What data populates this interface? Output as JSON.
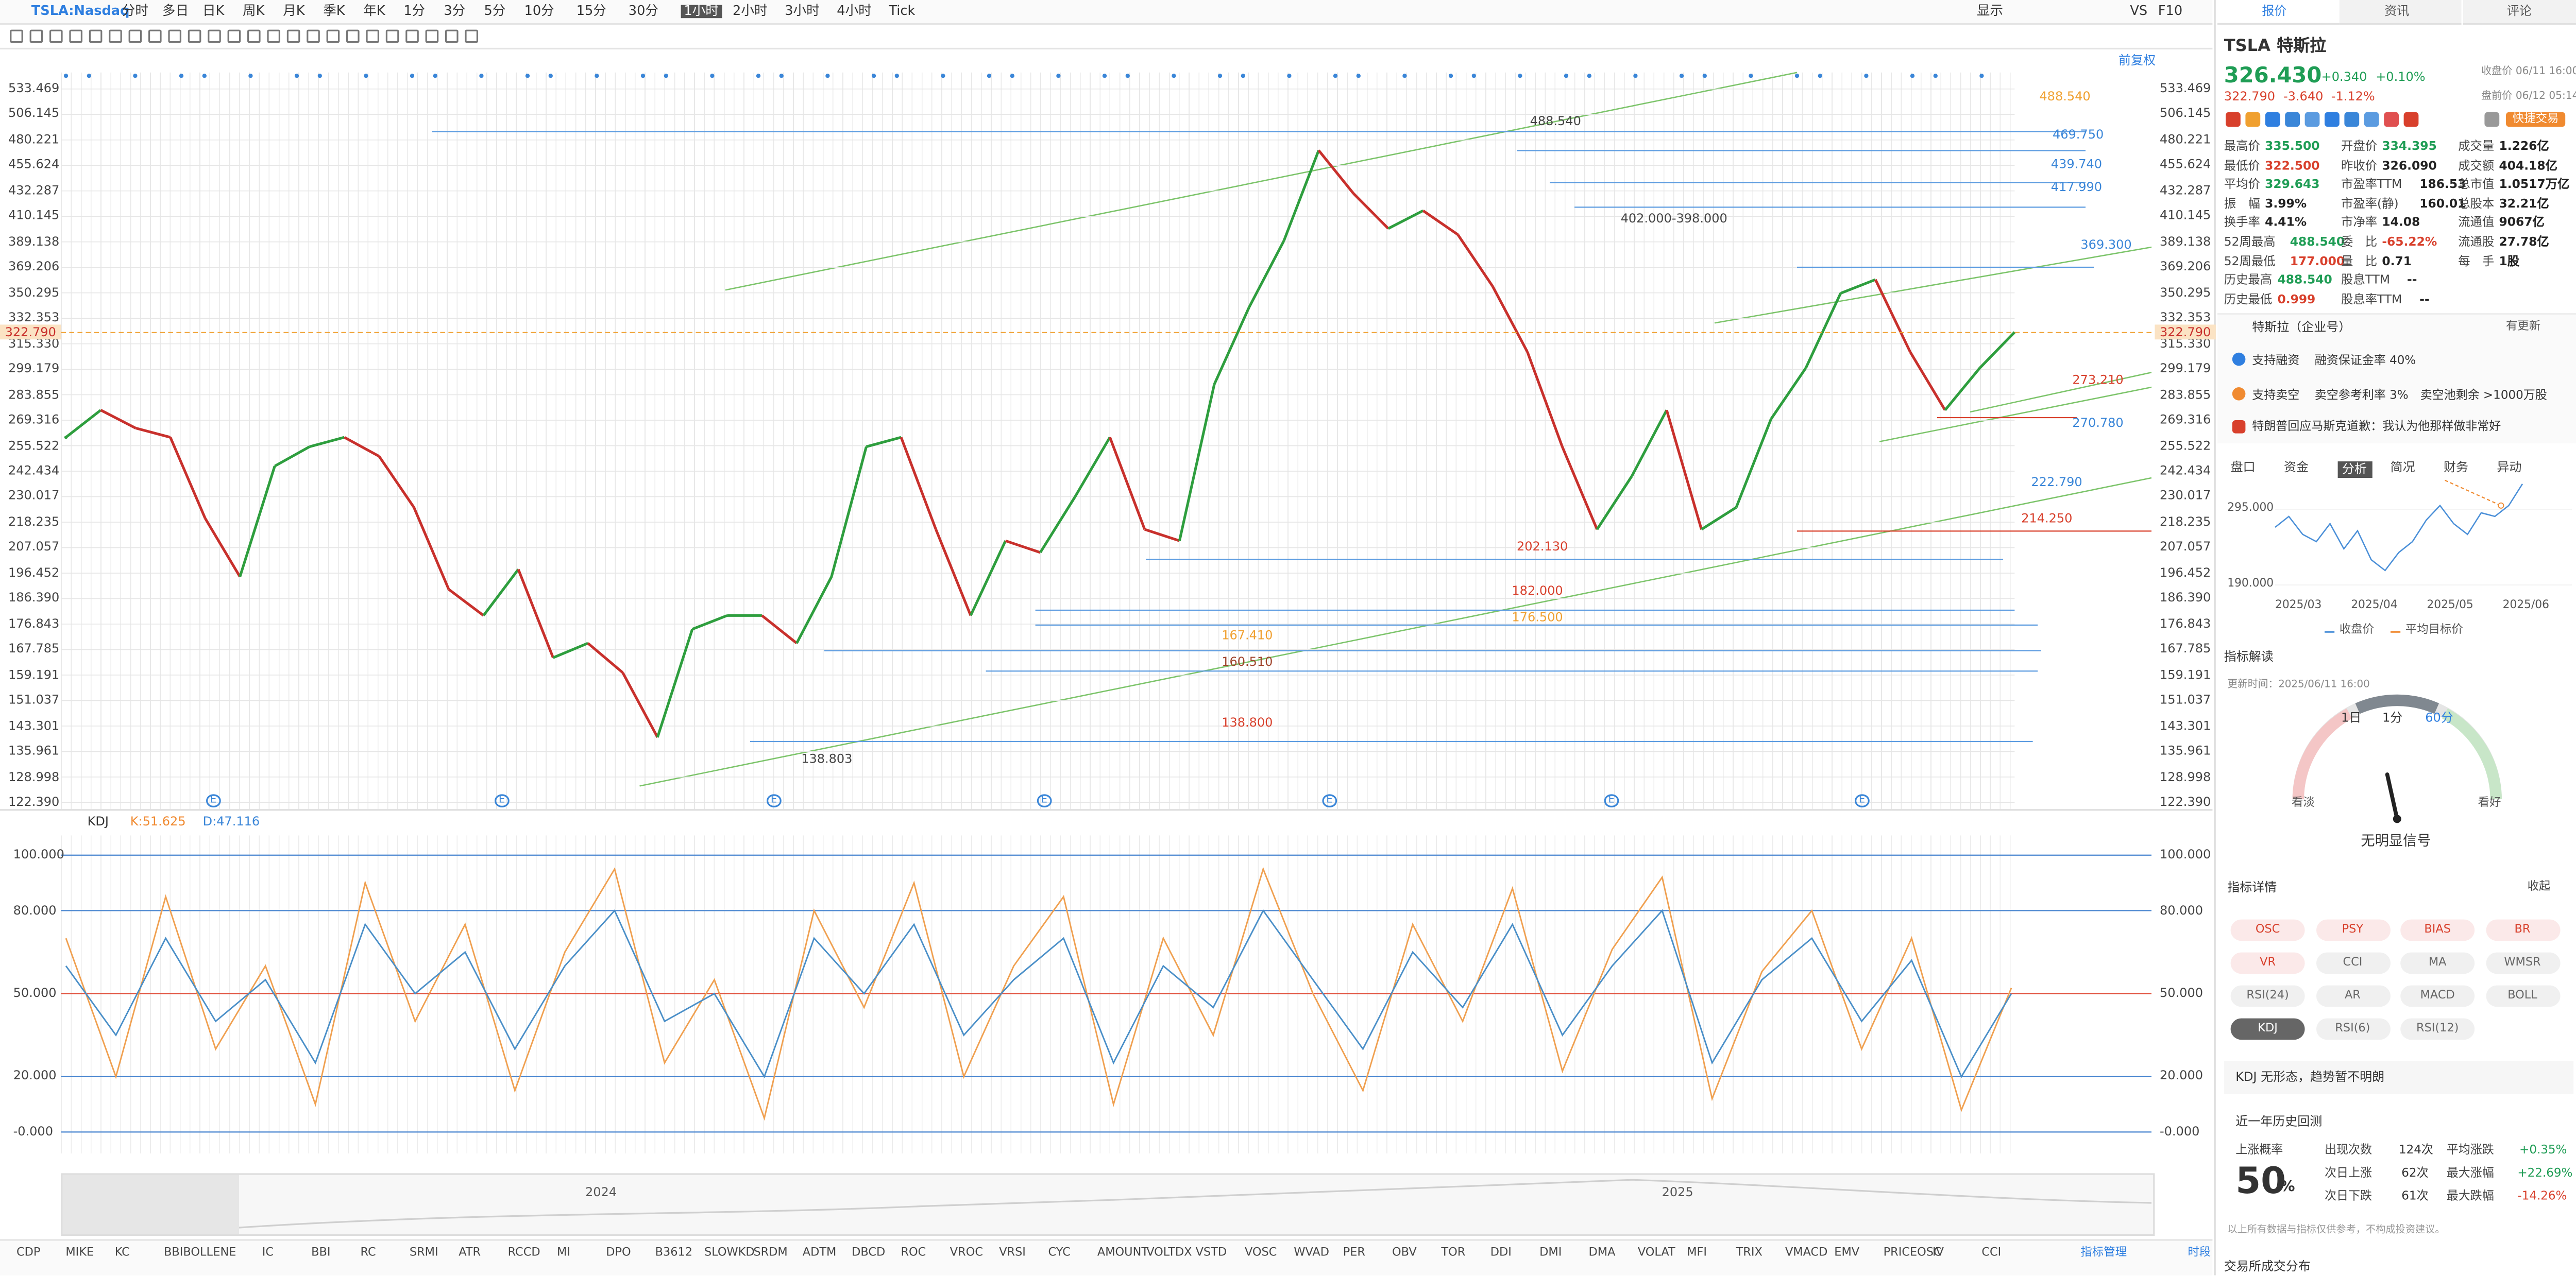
{
  "toolbar": {
    "symbol": "TSLA:Nasdaq",
    "periods": [
      "分时",
      "多日",
      "日K",
      "周K",
      "月K",
      "季K",
      "年K",
      "1分",
      "3分",
      "5分",
      "10分",
      "15分",
      "30分",
      "1小时",
      "2小时",
      "3小时",
      "4小时",
      "Tick"
    ],
    "active_period": 13,
    "right": [
      "显示",
      "VS",
      "F10"
    ]
  },
  "main_chart": {
    "type": "candlestick",
    "adjust": "前复权",
    "log_scale": true,
    "grid": true,
    "ylim": [
      122.39,
      533.469
    ],
    "yticks": [
      {
        "value": 533.469,
        "label": "533.469"
      },
      {
        "value": 506.145,
        "label": "506.145"
      },
      {
        "value": 480.221,
        "label": "480.221"
      },
      {
        "value": 455.624,
        "label": "455.624"
      },
      {
        "value": 432.287,
        "label": "432.287"
      },
      {
        "value": 410.145,
        "label": "410.145"
      },
      {
        "value": 389.138,
        "label": "389.138"
      },
      {
        "value": 369.206,
        "label": "369.206"
      },
      {
        "value": 350.295,
        "label": "350.295"
      },
      {
        "value": 332.353,
        "label": "332.353"
      },
      {
        "value": 315.33,
        "label": "315.330"
      },
      {
        "value": 299.179,
        "label": "299.179"
      },
      {
        "value": 283.855,
        "label": "283.855"
      },
      {
        "value": 269.316,
        "label": "269.316"
      },
      {
        "value": 255.522,
        "label": "255.522"
      },
      {
        "value": 242.434,
        "label": "242.434"
      },
      {
        "value": 230.017,
        "label": "230.017"
      },
      {
        "value": 218.235,
        "label": "218.235"
      },
      {
        "value": 207.057,
        "label": "207.057"
      },
      {
        "value": 196.452,
        "label": "196.452"
      },
      {
        "value": 186.39,
        "label": "186.390"
      },
      {
        "value": 176.843,
        "label": "176.843"
      },
      {
        "value": 167.785,
        "label": "167.785"
      },
      {
        "value": 159.191,
        "label": "159.191"
      },
      {
        "value": 151.037,
        "label": "151.037"
      },
      {
        "value": 143.301,
        "label": "143.301"
      },
      {
        "value": 135.961,
        "label": "135.961"
      },
      {
        "value": 128.998,
        "label": "128.998"
      },
      {
        "value": 122.39,
        "label": "122.390"
      }
    ],
    "last": {
      "value": 322.79,
      "label": "322.790"
    },
    "up_color": "#2e9e3e",
    "down_color": "#c8302c",
    "close": [
      260,
      275,
      265,
      260,
      220,
      195,
      245,
      255,
      260,
      250,
      225,
      190,
      180,
      198,
      165,
      170,
      160,
      140,
      175,
      180,
      180,
      170,
      195,
      255,
      260,
      215,
      180,
      210,
      205,
      230,
      260,
      215,
      210,
      290,
      340,
      390,
      470,
      430,
      400,
      415,
      395,
      355,
      310,
      255,
      215,
      240,
      275,
      215,
      225,
      270,
      300,
      350,
      360,
      310,
      275,
      300,
      323
    ],
    "annotations": [
      {
        "label": "488.540",
        "value": 488.54,
        "color": "#444444"
      },
      {
        "label": "402.000-398.000",
        "value": 402,
        "color": "#444444"
      },
      {
        "label": "138.803",
        "value": 138.803,
        "color": "#444444"
      },
      {
        "label": "488.540",
        "value": 488.54,
        "color": "#f0a030"
      },
      {
        "label": "469.750",
        "value": 469.75,
        "color": "#3a86d8"
      },
      {
        "label": "439.740",
        "value": 439.74,
        "color": "#3a86d8"
      },
      {
        "label": "417.990",
        "value": 417.99,
        "color": "#3a86d8"
      },
      {
        "label": "369.300",
        "value": 369.3,
        "color": "#3a86d8"
      },
      {
        "label": "273.210",
        "value": 273.21,
        "color": "#d8402c"
      },
      {
        "label": "270.780",
        "value": 270.78,
        "color": "#3a86d8"
      },
      {
        "label": "222.790",
        "value": 222.79,
        "color": "#3a86d8"
      },
      {
        "label": "214.250",
        "value": 214.25,
        "color": "#d8402c"
      },
      {
        "label": "202.130",
        "value": 202.13,
        "color": "#d8402c"
      },
      {
        "label": "182.000",
        "value": 182,
        "color": "#d8402c"
      },
      {
        "label": "176.500",
        "value": 176.5,
        "color": "#f0a030"
      },
      {
        "label": "167.410",
        "value": 167.41,
        "color": "#f0a030"
      },
      {
        "label": "160.510",
        "value": 160.51,
        "color": "#a0442c"
      },
      {
        "label": "138.800",
        "value": 138.8,
        "color": "#d8402c"
      }
    ],
    "earnings": [
      "E",
      "E",
      "E",
      "E",
      "E",
      "E",
      "E"
    ]
  },
  "kdj_chart": {
    "type": "line",
    "name": "KDJ",
    "k_label": "K:51.625",
    "d_label": "D:47.116",
    "ylim": [
      0,
      100
    ],
    "yticks": [
      {
        "value": 100,
        "label": "100.000"
      },
      {
        "value": 80,
        "label": "80.000"
      },
      {
        "value": 50,
        "label": "50.000"
      },
      {
        "value": 20,
        "label": "20.000"
      },
      {
        "value": 0,
        "label": "-0.000"
      }
    ],
    "series": [
      {
        "color": "#f0a050",
        "values": [
          70,
          20,
          85,
          30,
          60,
          10,
          90,
          40,
          75,
          15,
          65,
          95,
          25,
          55,
          5,
          80,
          45,
          90,
          20,
          60,
          85,
          10,
          70,
          35,
          95,
          50,
          15,
          75,
          40,
          88,
          22,
          66,
          92,
          12,
          58,
          80,
          30,
          70,
          8,
          52
        ]
      },
      {
        "color": "#4a8fc8",
        "values": [
          60,
          35,
          70,
          40,
          55,
          25,
          75,
          50,
          65,
          30,
          60,
          80,
          40,
          50,
          20,
          70,
          50,
          75,
          35,
          55,
          70,
          25,
          60,
          45,
          80,
          55,
          30,
          65,
          45,
          75,
          35,
          60,
          80,
          25,
          55,
          70,
          40,
          62,
          20,
          50
        ]
      }
    ]
  },
  "timeline": {
    "years": [
      "2024",
      "2025"
    ]
  },
  "bottom_bar": {
    "indicators": [
      "CDP",
      "MIKE",
      "KC",
      "BBIBOLL",
      "ENE",
      "IC",
      "BBI",
      "RC",
      "SRMI",
      "ATR",
      "RCCD",
      "MI",
      "DPO",
      "B3612",
      "SLOWKD",
      "SRDM",
      "ADTM",
      "DBCD",
      "ROC",
      "VROC",
      "VRSI",
      "CYC",
      "AMOUNT",
      "VOLTDX",
      "VSTD",
      "VOSC",
      "WVAD",
      "PER",
      "OBV",
      "TOR",
      "DDI",
      "DMI",
      "DMA",
      "VOLAT",
      "MFI",
      "TRIX",
      "VMACD",
      "EMV",
      "PRICEOSC",
      "IV",
      "CCI"
    ],
    "manage": "指标管理",
    "session": "时段"
  },
  "quote": {
    "tabs": [
      "报价",
      "资讯",
      "评论"
    ],
    "code": "TSLA",
    "name": "特斯拉",
    "price": "326.430",
    "change": "+0.340",
    "pct": "+0.10%",
    "close_note": "收盘价 06/11 16:00",
    "pre_price": "322.790",
    "pre_change": "-3.640",
    "pre_pct": "-1.12%",
    "pre_note": "盘前价 06/12 05:14",
    "trade_btn": "快捷交易",
    "stats": [
      [
        [
          "最高价",
          "335.500",
          "up"
        ],
        [
          "开盘价",
          "334.395",
          "up"
        ],
        [
          "成交量",
          "1.226亿",
          ""
        ]
      ],
      [
        [
          "最低价",
          "322.500",
          "down"
        ],
        [
          "昨收价",
          "326.090",
          ""
        ],
        [
          "成交额",
          "404.18亿",
          ""
        ]
      ],
      [
        [
          "平均价",
          "329.643",
          "up"
        ],
        [
          "市盈率TTM",
          "186.53",
          ""
        ],
        [
          "总市值",
          "1.0517万亿",
          ""
        ]
      ],
      [
        [
          "振　幅",
          "3.99%",
          ""
        ],
        [
          "市盈率(静)",
          "160.01",
          ""
        ],
        [
          "总股本",
          "32.21亿",
          ""
        ]
      ],
      [
        [
          "换手率",
          "4.41%",
          ""
        ],
        [
          "市净率",
          "14.08",
          ""
        ],
        [
          "流通值",
          "9067亿",
          ""
        ]
      ],
      [
        [
          "52周最高",
          "488.540",
          "up"
        ],
        [
          "委　比",
          "-65.22%",
          "down"
        ],
        [
          "流通股",
          "27.78亿",
          ""
        ]
      ],
      [
        [
          "52周最低",
          "177.000",
          "down"
        ],
        [
          "量　比",
          "0.71",
          ""
        ],
        [
          "每　手",
          "1股",
          ""
        ]
      ],
      [
        [
          "历史最高",
          "488.540",
          "up"
        ],
        [
          "股息TTM",
          "--",
          ""
        ]
      ],
      [
        [
          "历史最低",
          "0.999",
          "down"
        ],
        [
          "股息率TTM",
          "--",
          ""
        ]
      ]
    ]
  },
  "news": {
    "company": "特斯拉（企业号）",
    "company_more": "有更新",
    "items": [
      [
        "支持融资",
        "融资保证金率 40%"
      ],
      [
        "支持卖空",
        "卖空参考利率 3%　卖空池剩余 >1000万股"
      ]
    ],
    "headline": "特朗普回应马斯克道歉：我认为他那样做非常好"
  },
  "analysis_tabs": {
    "tabs": [
      "盘口",
      "资金",
      "分析",
      "简况",
      "财务",
      "异动"
    ],
    "active": 2
  },
  "mini_chart": {
    "ylim": [
      190,
      295
    ],
    "yticks": [
      {
        "value": 295,
        "label": "295.000"
      },
      {
        "value": 190,
        "label": "190.000"
      }
    ],
    "x_labels": [
      "2025/03",
      "2025/04",
      "2025/05",
      "2025/06"
    ],
    "close": [
      270,
      285,
      260,
      250,
      275,
      240,
      265,
      225,
      210,
      235,
      250,
      280,
      300,
      275,
      260,
      290,
      285,
      300,
      330
    ],
    "target": [
      335,
      300
    ],
    "legend": [
      "收盘价",
      "平均目标价"
    ]
  },
  "indicator": {
    "title": "指标解读",
    "updated": "更新时间：2025/06/11 16:00",
    "periods": [
      "1日",
      "1分",
      "60分"
    ],
    "active": 2,
    "bear": "看淡",
    "bull": "看好",
    "signal": "无明显信号",
    "details": "指标详情",
    "collapse": "收起",
    "buttons": [
      {
        "label": "OSC",
        "tone": "red"
      },
      {
        "label": "PSY",
        "tone": "red"
      },
      {
        "label": "BIAS",
        "tone": "red"
      },
      {
        "label": "BR",
        "tone": "red"
      },
      {
        "label": "VR",
        "tone": "red"
      },
      {
        "label": "CCI",
        "tone": "gray"
      },
      {
        "label": "MA",
        "tone": "gray"
      },
      {
        "label": "WMSR",
        "tone": "gray"
      },
      {
        "label": "RSI(24)",
        "tone": "gray"
      },
      {
        "label": "AR",
        "tone": "gray"
      },
      {
        "label": "MACD",
        "tone": "gray"
      },
      {
        "label": "BOLL",
        "tone": "gray"
      },
      {
        "label": "KDJ",
        "tone": "active"
      },
      {
        "label": "RSI(6)",
        "tone": "gray"
      },
      {
        "label": "RSI(12)",
        "tone": "gray"
      }
    ],
    "pattern": "KDJ 无形态，趋势暂不明朗"
  },
  "backtest": {
    "title": "近一年历史回测",
    "prob_label": "上涨概率",
    "prob": 50,
    "unit": "%",
    "rows": [
      [
        "出现次数",
        "124次",
        "平均涨跌",
        "+0.35%"
      ],
      [
        "次日上涨",
        "62次",
        "最大涨幅",
        "+22.69%"
      ],
      [
        "次日下跌",
        "61次",
        "最大跌幅",
        "-14.26%"
      ]
    ],
    "disclaimer": "以上所有数据与指标仅供参考，不构成投资建议。"
  },
  "footer": "交易所成交分布"
}
